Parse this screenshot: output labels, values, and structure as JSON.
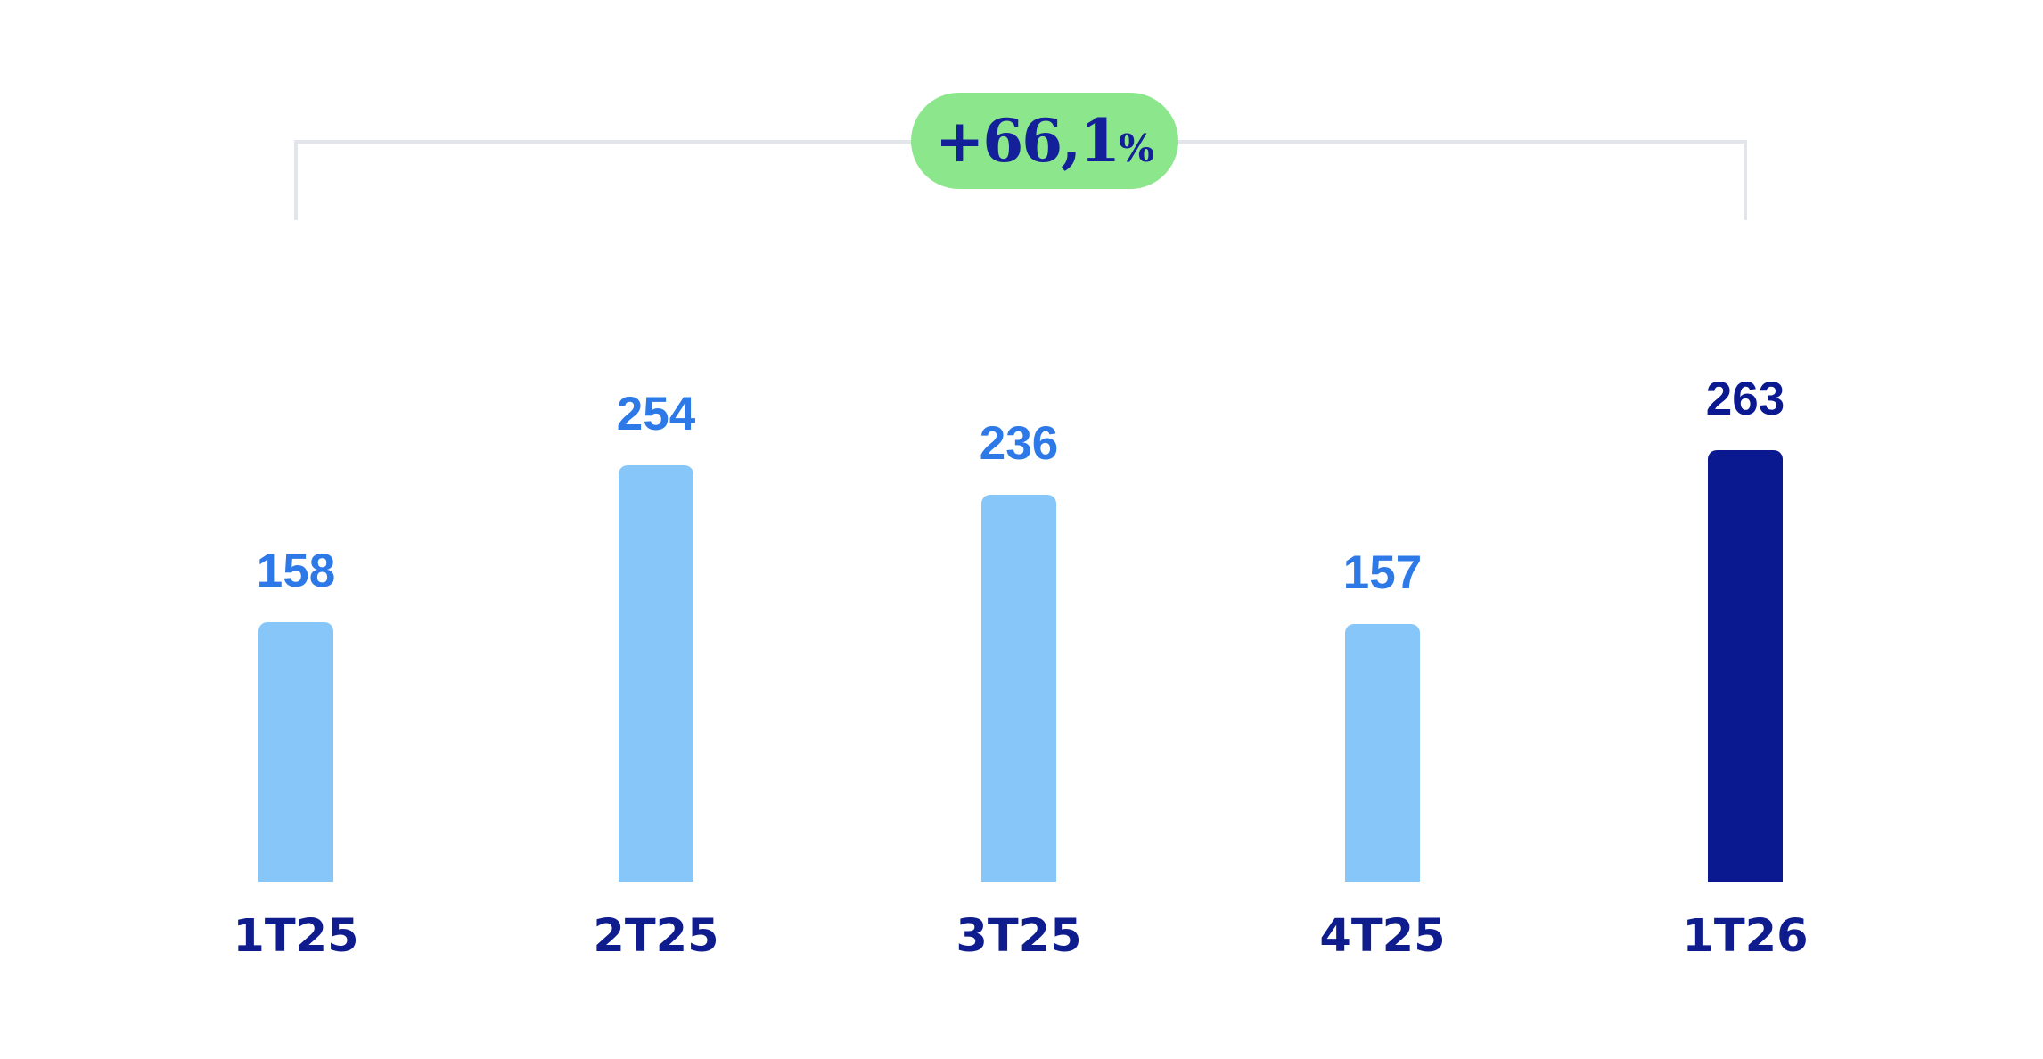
{
  "chart_data": {
    "type": "bar",
    "title": "",
    "categories": [
      "1T25",
      "2T25",
      "3T25",
      "4T25",
      "1T26"
    ],
    "values": [
      158,
      254,
      236,
      157,
      263
    ],
    "value_labels": [
      "158",
      "254",
      "236",
      "157",
      "263"
    ],
    "highlight_index": 4,
    "ylim": [
      0,
      280
    ],
    "grid": false,
    "legend": false,
    "colors": {
      "background": "#FFFFFF",
      "bar_default": "#87C6F8",
      "bar_highlight": "#0A1990",
      "value_label_default": "#2E79E8",
      "value_label_highlight": "#0A1990",
      "category_label": "#0E1C8E",
      "badge_bg": "#8CE78C",
      "badge_text": "#14209A",
      "bracket_line": "#E2E5E9"
    },
    "annotation": {
      "label": "+66,1%",
      "label_main": "+66,1",
      "label_suffix": "%",
      "from_category": "1T25",
      "to_category": "1T26"
    }
  }
}
